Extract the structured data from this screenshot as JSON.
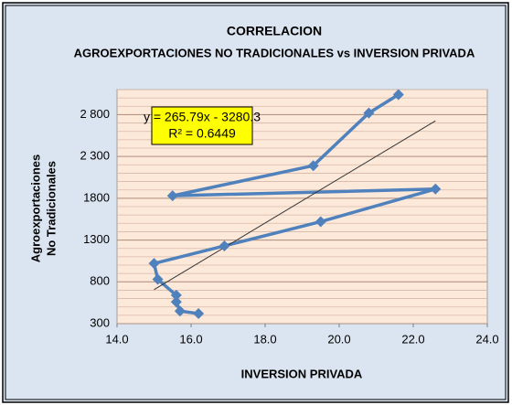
{
  "chart_data": {
    "type": "scatter",
    "title": "CORRELACION",
    "subtitle": "AGROEXPORTACIONES NO TRADICIONALES vs INVERSION PRIVADA",
    "x_label": "INVERSION PRIVADA",
    "y_label": [
      "Agroexportaciones",
      "No Tradicionales"
    ],
    "x": [
      16.2,
      15.7,
      15.6,
      15.6,
      15.1,
      15.0,
      16.9,
      19.5,
      22.6,
      15.5,
      19.3,
      20.8,
      21.6
    ],
    "series": [
      {
        "name": "Agroexportaciones No Tradicionales",
        "color": "#4f81bd",
        "values": [
          420,
          450,
          560,
          640,
          830,
          1020,
          1230,
          1520,
          1910,
          1830,
          2190,
          2820,
          3040
        ]
      }
    ],
    "trendline": {
      "slope": 265.79,
      "intercept": -3280.3,
      "color": "#333333",
      "label": "y = 265.79x - 3280.3",
      "r2_label": "R² = 0.6449"
    },
    "xlim": [
      14,
      24
    ],
    "xticks": [
      {
        "value": 14,
        "label": "14.0"
      },
      {
        "value": 16,
        "label": "16.0"
      },
      {
        "value": 18,
        "label": "18.0"
      },
      {
        "value": 20,
        "label": "20.0"
      },
      {
        "value": 22,
        "label": "22.0"
      },
      {
        "value": 24,
        "label": "24.0"
      }
    ],
    "ylim": [
      300,
      3100
    ],
    "yticks": [
      300,
      800,
      1300,
      1800,
      {
        "value": 2300,
        "label": "2 300"
      },
      {
        "value": 2800,
        "label": "2 800"
      }
    ],
    "minor_grid_step": 100,
    "grid": true
  }
}
